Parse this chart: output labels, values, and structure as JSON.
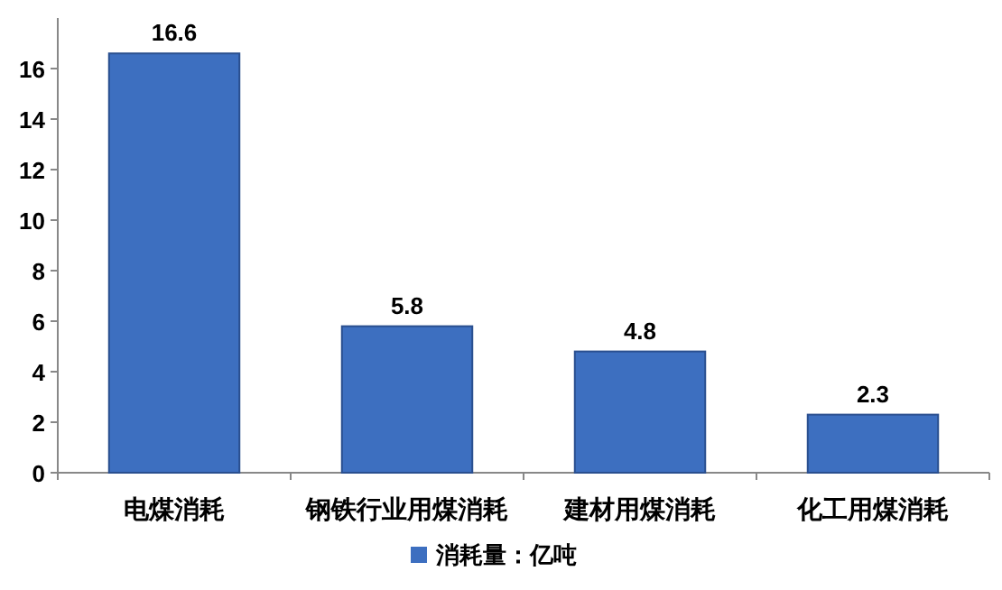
{
  "chart_data": {
    "type": "bar",
    "categories": [
      "电煤消耗",
      "钢铁行业用煤消耗",
      "建材用煤消耗",
      "化工用煤消耗"
    ],
    "series": [
      {
        "name": "消耗量：亿吨",
        "color": "#3d6fc0",
        "values": [
          16.6,
          5.8,
          4.8,
          2.3
        ]
      }
    ],
    "ylim": [
      0,
      18
    ],
    "yticks": [
      0,
      2,
      4,
      6,
      8,
      10,
      12,
      14,
      16
    ],
    "data_labels": true,
    "legend": "bottom",
    "grid": false
  }
}
